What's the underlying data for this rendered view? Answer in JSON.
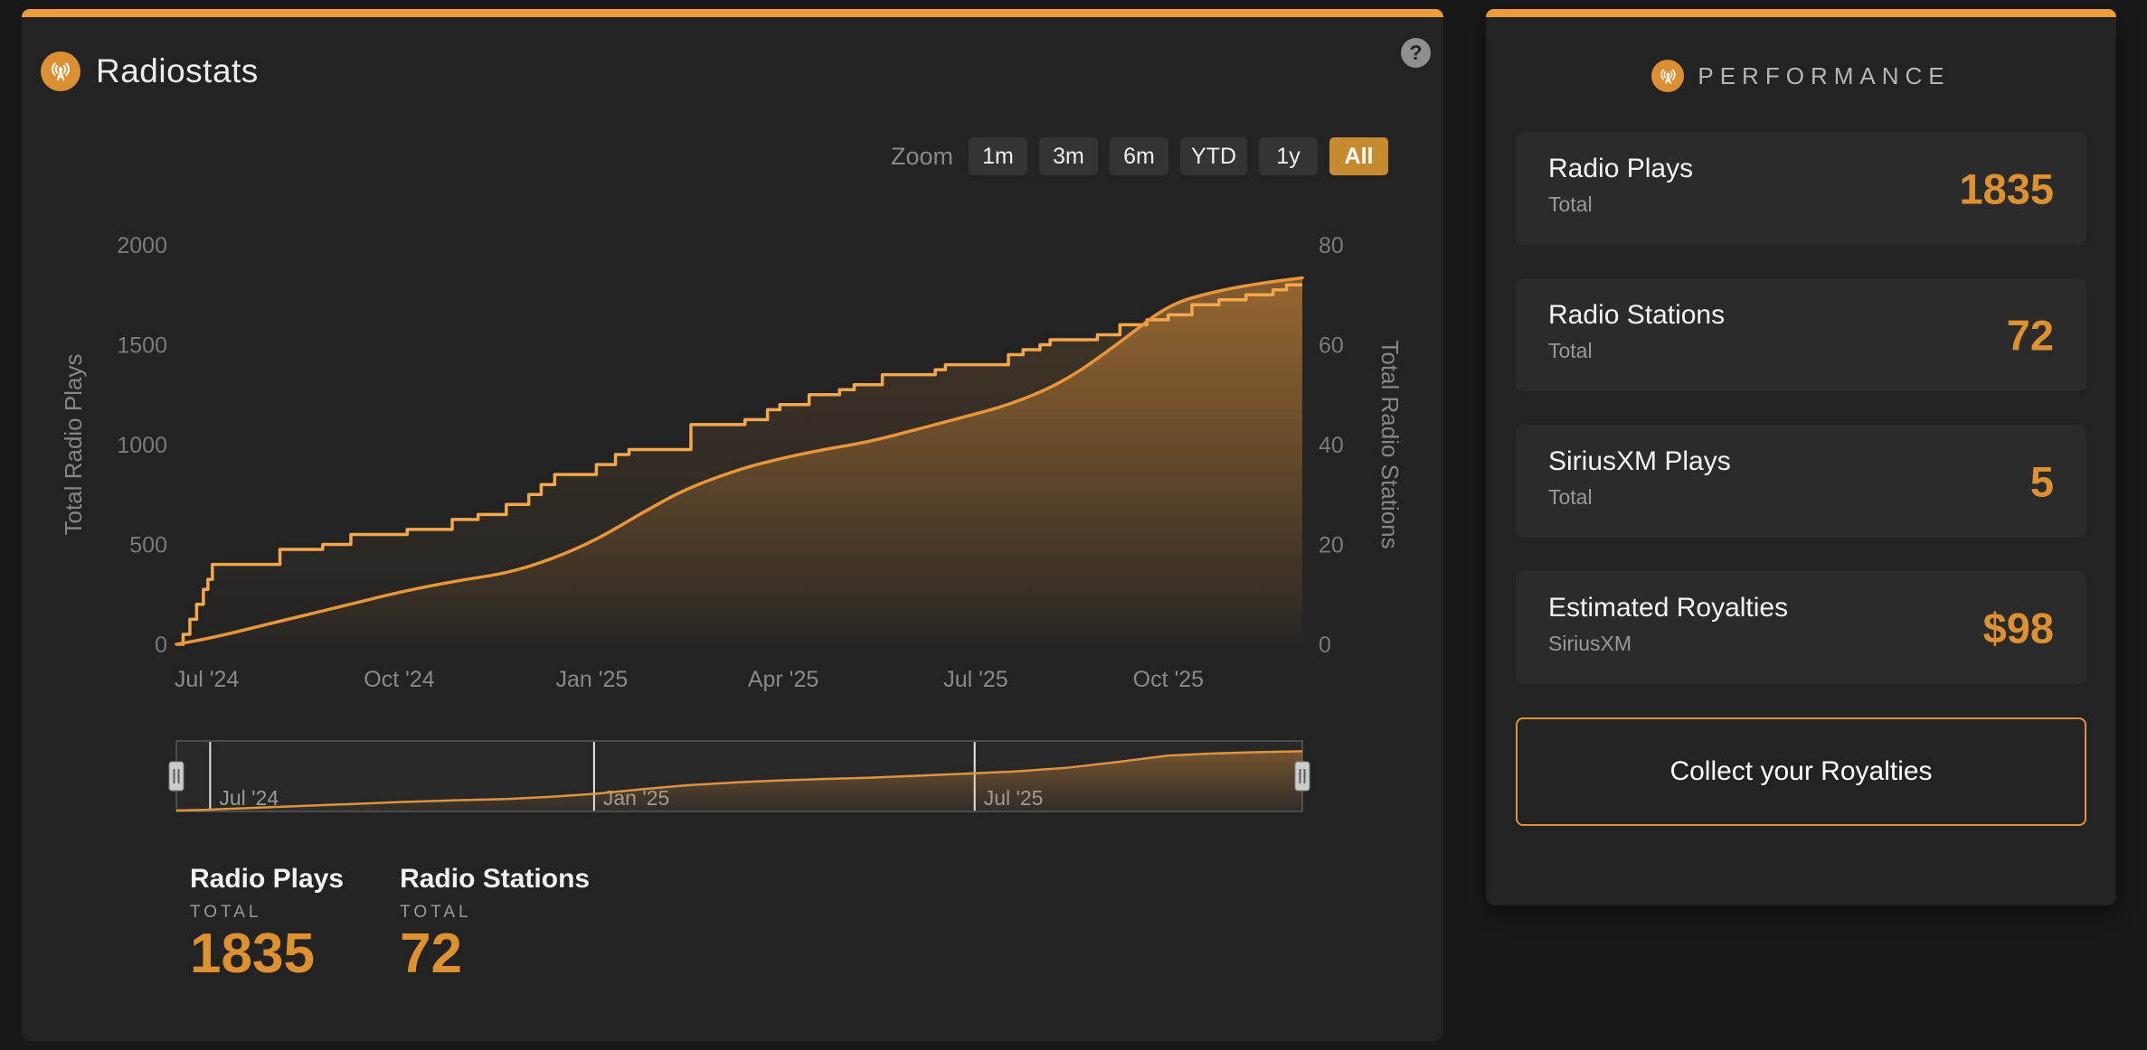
{
  "colors": {
    "accent_bar": "#ee9b3b",
    "value_orange": "#dd9130",
    "plays_line": "#e8963a",
    "stations_line": "#f4a84e",
    "selected_button_bg": "#c68a30"
  },
  "header": {
    "title": "Radiostats",
    "help_glyph": "?"
  },
  "zoom": {
    "label": "Zoom",
    "options": [
      "1m",
      "3m",
      "6m",
      "YTD",
      "1y",
      "All"
    ],
    "selected": "All"
  },
  "chart_data": {
    "type": "line",
    "x_ticks": [
      {
        "label": "Jul '24",
        "f": 0.027
      },
      {
        "label": "Oct '24",
        "f": 0.198
      },
      {
        "label": "Jan '25",
        "f": 0.369
      },
      {
        "label": "Apr '25",
        "f": 0.539
      },
      {
        "label": "Jul '25",
        "f": 0.71
      },
      {
        "label": "Oct '25",
        "f": 0.881
      }
    ],
    "y_left": {
      "title": "Total Radio Plays",
      "ticks": [
        0,
        500,
        1000,
        1500,
        2000
      ],
      "max": 2000
    },
    "y_right": {
      "title": "Total Radio Stations",
      "ticks": [
        0,
        20,
        40,
        60,
        80
      ],
      "max": 80
    },
    "series": [
      {
        "name": "Radio Plays",
        "axis": "left",
        "shape": "smooth",
        "total": 1835,
        "points": [
          [
            0,
            0
          ],
          [
            0.027,
            25
          ],
          [
            0.084,
            105
          ],
          [
            0.14,
            180
          ],
          [
            0.198,
            262
          ],
          [
            0.253,
            322
          ],
          [
            0.293,
            355
          ],
          [
            0.333,
            425
          ],
          [
            0.374,
            525
          ],
          [
            0.414,
            660
          ],
          [
            0.454,
            783
          ],
          [
            0.502,
            880
          ],
          [
            0.535,
            928
          ],
          [
            0.574,
            975
          ],
          [
            0.614,
            1012
          ],
          [
            0.655,
            1072
          ],
          [
            0.695,
            1131
          ],
          [
            0.743,
            1204
          ],
          [
            0.791,
            1322
          ],
          [
            0.84,
            1520
          ],
          [
            0.881,
            1700
          ],
          [
            0.92,
            1764
          ],
          [
            0.96,
            1806
          ],
          [
            1,
            1835
          ]
        ]
      },
      {
        "name": "Radio Stations",
        "axis": "right",
        "shape": "step",
        "total": 72,
        "points": [
          [
            0,
            0
          ],
          [
            0.006,
            2
          ],
          [
            0.012,
            5
          ],
          [
            0.018,
            8
          ],
          [
            0.024,
            11
          ],
          [
            0.028,
            13
          ],
          [
            0.032,
            16
          ],
          [
            0.092,
            19
          ],
          [
            0.13,
            20
          ],
          [
            0.155,
            22
          ],
          [
            0.205,
            23
          ],
          [
            0.245,
            25
          ],
          [
            0.268,
            26
          ],
          [
            0.293,
            28
          ],
          [
            0.313,
            30
          ],
          [
            0.324,
            32
          ],
          [
            0.336,
            34
          ],
          [
            0.373,
            36
          ],
          [
            0.39,
            38
          ],
          [
            0.402,
            39
          ],
          [
            0.457,
            44
          ],
          [
            0.505,
            45
          ],
          [
            0.525,
            47
          ],
          [
            0.536,
            48
          ],
          [
            0.562,
            50
          ],
          [
            0.589,
            51
          ],
          [
            0.602,
            52
          ],
          [
            0.627,
            54
          ],
          [
            0.674,
            55
          ],
          [
            0.683,
            56
          ],
          [
            0.739,
            58
          ],
          [
            0.752,
            59
          ],
          [
            0.767,
            60
          ],
          [
            0.776,
            61
          ],
          [
            0.818,
            62
          ],
          [
            0.838,
            64
          ],
          [
            0.862,
            65
          ],
          [
            0.881,
            66
          ],
          [
            0.902,
            68
          ],
          [
            0.926,
            69
          ],
          [
            0.95,
            70
          ],
          [
            0.974,
            71
          ],
          [
            0.986,
            72
          ],
          [
            1,
            72
          ]
        ]
      }
    ],
    "navigator": {
      "series": "Radio Plays",
      "max": 1900,
      "labels": [
        {
          "label": "Jul '24",
          "f": 0.03
        },
        {
          "label": "Jan '25",
          "f": 0.371
        },
        {
          "label": "Jul '25",
          "f": 0.709
        }
      ]
    }
  },
  "legend": {
    "items": [
      {
        "title": "Radio Plays",
        "sub": "TOTAL",
        "value": "1835"
      },
      {
        "title": "Radio Stations",
        "sub": "TOTAL",
        "value": "72"
      }
    ]
  },
  "sidebar": {
    "header": "PERFORMANCE",
    "stats": [
      {
        "title": "Radio Plays",
        "sub": "Total",
        "value": "1835"
      },
      {
        "title": "Radio Stations",
        "sub": "Total",
        "value": "72"
      },
      {
        "title": "SiriusXM Plays",
        "sub": "Total",
        "value": "5"
      },
      {
        "title": "Estimated Royalties",
        "sub": "SiriusXM",
        "value": "$98"
      }
    ],
    "button_label": "Collect your Royalties"
  }
}
